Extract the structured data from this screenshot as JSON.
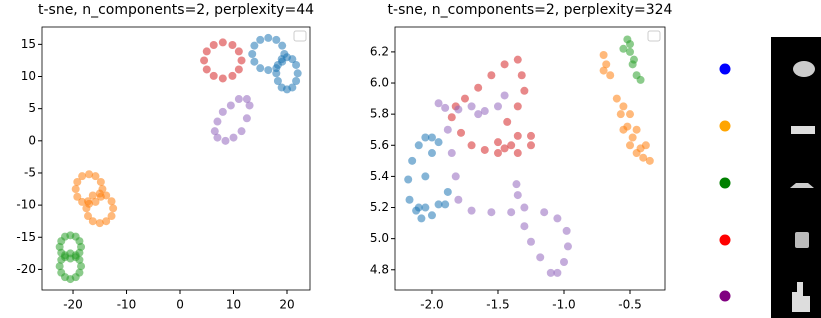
{
  "chart_data": [
    {
      "type": "scatter",
      "title": "t-sne, n_components=2, perplexity=44",
      "xlim": [
        -25.8,
        24.3
      ],
      "ylim": [
        -23.2,
        17.7
      ],
      "xticks": [
        -20,
        -10,
        0,
        10,
        20
      ],
      "yticks": [
        -20,
        -15,
        -10,
        -5,
        0,
        5,
        10,
        15
      ],
      "series": [
        {
          "color": "#1f77b4",
          "x": [
            19.5,
            19.1,
            18,
            16.5,
            15,
            13.9,
            13.5,
            13.9,
            15,
            16.5,
            18,
            19.1,
            22,
            21.7,
            21,
            20,
            19,
            18.3,
            18,
            18.3,
            19,
            20,
            21,
            21.7
          ],
          "values": [
            13.5,
            14.8,
            15.7,
            16,
            15.7,
            14.8,
            13.5,
            12.3,
            11.3,
            11,
            11.3,
            12.3,
            10.5,
            11.8,
            12.7,
            13,
            12.7,
            11.8,
            10.5,
            9.3,
            8.3,
            8,
            8.3,
            9.3
          ]
        },
        {
          "color": "#ff7f0e",
          "x": [
            -14.5,
            -14.8,
            -15.8,
            -17,
            -18.3,
            -19.2,
            -19.5,
            -19.2,
            -18.3,
            -17,
            -15.8,
            -14.8,
            -12.5,
            -12.8,
            -13.8,
            -15,
            -16.3,
            -17.2,
            -17.5,
            -17.2,
            -16.3,
            -15,
            -13.8,
            -12.8
          ],
          "values": [
            -7.5,
            -6.4,
            -5.5,
            -5.2,
            -5.5,
            -6.4,
            -7.5,
            -8.7,
            -9.5,
            -9.8,
            -9.5,
            -8.7,
            -10.5,
            -9.4,
            -8.5,
            -8.2,
            -8.5,
            -9.4,
            -10.5,
            -11.7,
            -12.5,
            -12.8,
            -12.5,
            -11.7
          ]
        },
        {
          "color": "#2ca02c",
          "x": [
            -18.5,
            -18.8,
            -19.5,
            -20.5,
            -21.5,
            -22.2,
            -22.5,
            -22.2,
            -21.5,
            -20.5,
            -19.5,
            -18.8,
            -18.5,
            -18.8,
            -19.5,
            -20.5,
            -21.5,
            -22.2,
            -22.5,
            -22.2,
            -21.5,
            -20.5,
            -19.5,
            -18.8
          ],
          "values": [
            -16.5,
            -15.6,
            -14.9,
            -14.7,
            -14.9,
            -15.6,
            -16.5,
            -17.4,
            -18.1,
            -18.3,
            -18.1,
            -17.4,
            -19.5,
            -18.5,
            -17.8,
            -17.5,
            -17.8,
            -18.5,
            -19.5,
            -20.5,
            -21.2,
            -21.5,
            -21.2,
            -20.5
          ]
        },
        {
          "color": "#d62728",
          "x": [
            11.5,
            11,
            9.8,
            8,
            6.3,
            5,
            4.5,
            5,
            6.3,
            8,
            9.8,
            11
          ],
          "values": [
            12.5,
            13.9,
            14.9,
            15.3,
            14.9,
            13.9,
            12.5,
            11.1,
            10.1,
            9.7,
            10.1,
            11.1
          ]
        },
        {
          "color": "#9467bd",
          "x": [
            7,
            6.5,
            7,
            8,
            9.5,
            11,
            12.5,
            13,
            12.5,
            11.5,
            10,
            8.5
          ],
          "values": [
            0.5,
            1.5,
            3,
            4.5,
            5.5,
            6.5,
            6.5,
            5.5,
            3.5,
            1.5,
            0.5,
            0
          ]
        }
      ]
    },
    {
      "type": "scatter",
      "title": "t-sne, n_components=2, perplexity=324",
      "xlim": [
        -2.28,
        -0.235
      ],
      "ylim": [
        4.67,
        6.36
      ],
      "xticks": [
        {
          "value": -2,
          "label": "-2.0"
        },
        -1.5,
        {
          "value": -1,
          "label": "-1.0"
        },
        -0.5
      ],
      "yticks": [
        4.8,
        {
          "value": 5,
          "label": "5.0"
        },
        5.2,
        5.4,
        5.6,
        5.8,
        {
          "value": 6,
          "label": "6.0"
        },
        6.2
      ],
      "series": [
        {
          "color": "#1f77b4",
          "x": [
            -2.05,
            -2.1,
            -2.15,
            -2.18,
            -2.17,
            -2.12,
            -2.05,
            -1.95,
            -1.88,
            -1.9,
            -2.0,
            -2.08,
            -2.1,
            -2.05,
            -2.0,
            -1.95,
            -2.0
          ],
          "values": [
            5.65,
            5.6,
            5.5,
            5.38,
            5.25,
            5.18,
            5.2,
            5.22,
            5.3,
            5.22,
            5.15,
            5.13,
            5.2,
            5.4,
            5.55,
            5.62,
            5.65
          ]
        },
        {
          "color": "#ff7f0e",
          "x": [
            -0.7,
            -0.68,
            -0.65,
            -0.7,
            -0.6,
            -0.57,
            -0.55,
            -0.5,
            -0.45,
            -0.4,
            -0.35,
            -0.38,
            -0.45,
            -0.5,
            -0.55,
            -0.52,
            -0.48,
            -0.42
          ],
          "values": [
            6.18,
            6.12,
            6.05,
            6.08,
            5.9,
            5.8,
            5.7,
            5.6,
            5.55,
            5.52,
            5.5,
            5.6,
            5.7,
            5.8,
            5.85,
            5.72,
            5.65,
            5.58
          ]
        },
        {
          "color": "#2ca02c",
          "x": [
            -0.52,
            -0.5,
            -0.48,
            -0.45,
            -0.42,
            -0.47,
            -0.5,
            -0.55
          ],
          "values": [
            6.28,
            6.2,
            6.12,
            6.05,
            6.02,
            6.15,
            6.25,
            6.22
          ]
        },
        {
          "color": "#d62728",
          "x": [
            -1.85,
            -1.78,
            -1.7,
            -1.6,
            -1.5,
            -1.4,
            -1.35,
            -1.25,
            -1.25,
            -1.35,
            -1.45,
            -1.5,
            -1.43,
            -1.35,
            -1.3,
            -1.32,
            -1.35,
            -1.45,
            -1.55,
            -1.65,
            -1.75,
            -1.82
          ],
          "values": [
            5.78,
            5.68,
            5.6,
            5.57,
            5.55,
            5.6,
            5.66,
            5.66,
            5.6,
            5.55,
            5.58,
            5.62,
            5.75,
            5.85,
            5.95,
            6.05,
            6.15,
            6.12,
            6.05,
            5.97,
            5.9,
            5.85
          ]
        },
        {
          "color": "#9467bd",
          "x": [
            -1.95,
            -1.9,
            -1.8,
            -1.7,
            -1.65,
            -1.6,
            -1.5,
            -1.45,
            -1.88,
            -1.85,
            -1.82,
            -1.8,
            -1.7,
            -1.55,
            -1.4,
            -1.3,
            -1.15,
            -1.05,
            -0.98,
            -0.97,
            -1.0,
            -1.05,
            -1.1,
            -1.18,
            -1.25,
            -1.3,
            -1.35,
            -1.36
          ],
          "values": [
            5.87,
            5.84,
            5.83,
            5.85,
            5.8,
            5.82,
            5.85,
            5.92,
            5.7,
            5.55,
            5.4,
            5.25,
            5.18,
            5.17,
            5.17,
            5.2,
            5.17,
            5.13,
            5.05,
            4.95,
            4.85,
            4.78,
            4.78,
            4.88,
            4.98,
            5.08,
            5.28,
            5.35
          ]
        }
      ]
    }
  ]
}
